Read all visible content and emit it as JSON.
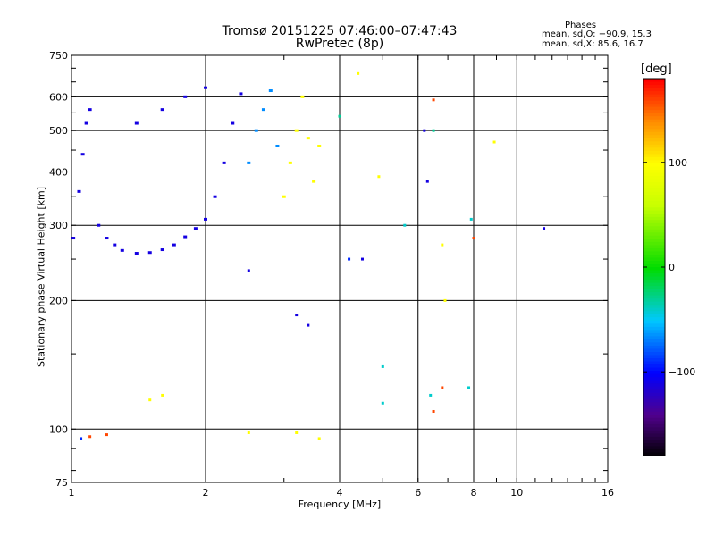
{
  "chart_data": {
    "type": "scatter",
    "title": "Tromsø 20151225 07:46:00–07:47:43",
    "subtitle": "RwPretec (8p)",
    "xlabel": "Frequency [MHz]",
    "ylabel": "Stationary phase Virtual Height [km]",
    "x_scale": "log",
    "y_scale": "log",
    "xlim": [
      1,
      16
    ],
    "ylim": [
      75,
      750
    ],
    "x_ticks": [
      1,
      2,
      4,
      6,
      8,
      10,
      16
    ],
    "x_tick_labels": [
      "1",
      "2",
      "4",
      "6",
      "8",
      "10",
      "16"
    ],
    "y_ticks": [
      75,
      100,
      200,
      300,
      400,
      500,
      600,
      750
    ],
    "y_tick_labels": [
      "75",
      "100",
      "200",
      "300",
      "400",
      "500",
      "600",
      "750"
    ],
    "grid_x": [
      2,
      4,
      6,
      8,
      10
    ],
    "grid_y": [
      100,
      200,
      300,
      400,
      500,
      600
    ],
    "color_variable": "phase",
    "colorbar": {
      "unit": "[deg]",
      "range": [
        -180,
        180
      ],
      "ticks": [
        100,
        0,
        -100
      ],
      "tick_labels": [
        "100",
        "0",
        "−100"
      ]
    },
    "phase_stats": {
      "title": "Phases",
      "o_line": "mean, sd,O: −90.9, 15.3",
      "x_line": "mean, sd,X:  85.6, 16.7"
    },
    "series": [
      {
        "points": [
          [
            1.01,
            280,
            -110
          ],
          [
            1.04,
            360,
            -110
          ],
          [
            1.06,
            440,
            -110
          ],
          [
            1.08,
            520,
            -110
          ],
          [
            1.1,
            560,
            -110
          ],
          [
            1.15,
            300,
            -110
          ],
          [
            1.2,
            280,
            -110
          ],
          [
            1.25,
            270,
            -110
          ],
          [
            1.3,
            262,
            -110
          ],
          [
            1.4,
            258,
            -110
          ],
          [
            1.5,
            259,
            -110
          ],
          [
            1.6,
            263,
            -110
          ],
          [
            1.7,
            270,
            -110
          ],
          [
            1.8,
            282,
            -110
          ],
          [
            1.9,
            295,
            -110
          ],
          [
            2.0,
            310,
            -110
          ],
          [
            2.1,
            350,
            -110
          ],
          [
            2.2,
            420,
            -110
          ],
          [
            2.3,
            520,
            -110
          ],
          [
            2.4,
            610,
            -110
          ],
          [
            1.4,
            520,
            -110
          ],
          [
            1.6,
            560,
            -110
          ],
          [
            1.8,
            600,
            -110
          ],
          [
            2.0,
            630,
            -110
          ]
        ]
      },
      {
        "points": [
          [
            2.5,
            420,
            -65
          ],
          [
            2.6,
            500,
            -65
          ],
          [
            2.7,
            560,
            -65
          ],
          [
            2.8,
            620,
            -65
          ],
          [
            2.9,
            460,
            -65
          ],
          [
            3.0,
            350,
            100
          ],
          [
            3.1,
            420,
            100
          ],
          [
            3.2,
            500,
            100
          ],
          [
            3.3,
            600,
            100
          ],
          [
            3.4,
            480,
            100
          ],
          [
            3.5,
            380,
            100
          ],
          [
            3.6,
            460,
            100
          ]
        ]
      }
    ],
    "scatter_points": [
      [
        4.4,
        680,
        100
      ],
      [
        4.9,
        390,
        100
      ],
      [
        5.6,
        300,
        -40
      ],
      [
        6.2,
        500,
        -110
      ],
      [
        6.3,
        380,
        -110
      ],
      [
        6.5,
        590,
        160
      ],
      [
        6.5,
        500,
        -30
      ],
      [
        6.8,
        270,
        100
      ],
      [
        6.9,
        200,
        100
      ],
      [
        7.9,
        310,
        -40
      ],
      [
        8.0,
        280,
        160
      ],
      [
        8.9,
        470,
        100
      ],
      [
        11.5,
        295,
        -110
      ],
      [
        4.2,
        250,
        -90
      ],
      [
        4.5,
        250,
        -110
      ],
      [
        5.0,
        140,
        -40
      ],
      [
        5.0,
        115,
        -40
      ],
      [
        6.4,
        120,
        -40
      ],
      [
        6.5,
        110,
        160
      ],
      [
        6.8,
        125,
        160
      ],
      [
        7.8,
        125,
        -40
      ],
      [
        2.5,
        235,
        -110
      ],
      [
        3.2,
        185,
        -110
      ],
      [
        3.4,
        175,
        -110
      ],
      [
        1.05,
        95,
        -90
      ],
      [
        1.1,
        96,
        160
      ],
      [
        1.2,
        97,
        160
      ],
      [
        1.5,
        117,
        100
      ],
      [
        1.6,
        120,
        100
      ],
      [
        3.2,
        98,
        100
      ],
      [
        3.6,
        95,
        100
      ],
      [
        2.5,
        98,
        100
      ],
      [
        4.0,
        540,
        -30
      ]
    ]
  }
}
